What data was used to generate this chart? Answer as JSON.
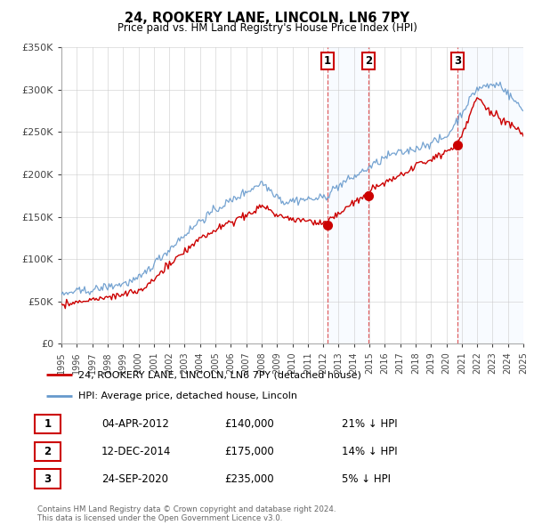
{
  "title": "24, ROOKERY LANE, LINCOLN, LN6 7PY",
  "subtitle": "Price paid vs. HM Land Registry's House Price Index (HPI)",
  "ylim": [
    0,
    350000
  ],
  "yticks": [
    0,
    50000,
    100000,
    150000,
    200000,
    250000,
    300000,
    350000
  ],
  "ytick_labels": [
    "£0",
    "£50K",
    "£100K",
    "£150K",
    "£200K",
    "£250K",
    "£300K",
    "£350K"
  ],
  "background_color": "#ffffff",
  "plot_bg_color": "#ffffff",
  "grid_color": "#cccccc",
  "hpi_color": "#6699cc",
  "hpi_fill_color": "#ddeeff",
  "price_color": "#cc0000",
  "vline_color": "#dd4444",
  "sale_box_color": "#cc0000",
  "legend_label_price": "24, ROOKERY LANE, LINCOLN, LN6 7PY (detached house)",
  "legend_label_hpi": "HPI: Average price, detached house, Lincoln",
  "transactions": [
    {
      "label": "1",
      "date_num": 2012.26,
      "price": 140000,
      "hpi_pct": "21%",
      "date_str": "04-APR-2012"
    },
    {
      "label": "2",
      "date_num": 2014.95,
      "price": 175000,
      "hpi_pct": "14%",
      "date_str": "12-DEC-2014"
    },
    {
      "label": "3",
      "date_num": 2020.73,
      "price": 235000,
      "hpi_pct": "5%",
      "date_str": "24-SEP-2020"
    }
  ],
  "footer_line1": "Contains HM Land Registry data © Crown copyright and database right 2024.",
  "footer_line2": "This data is licensed under the Open Government Licence v3.0.",
  "xmin": 1995,
  "xmax": 2025
}
